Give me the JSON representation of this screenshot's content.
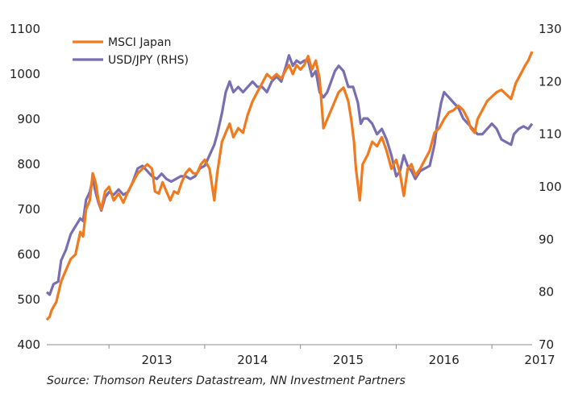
{
  "chart_data": {
    "type": "line",
    "title": "",
    "source": "Source: Thomson Reuters Datastream, NN Investment Partners",
    "x_axis": {
      "tick_labels": [
        "2013",
        "2014",
        "2015",
        "2016",
        "2017"
      ],
      "xlim": [
        2012.35,
        2017.42
      ]
    },
    "y_left": {
      "ylim": [
        400,
        1100
      ],
      "ticks": [
        "400",
        "500",
        "600",
        "700",
        "800",
        "900",
        "1000",
        "1100"
      ]
    },
    "y_right": {
      "ylim": [
        70,
        130
      ],
      "ticks": [
        "70",
        "80",
        "90",
        "100",
        "110",
        "120",
        "130"
      ]
    },
    "grid": false,
    "legend": {
      "position": "top-left"
    },
    "series": [
      {
        "name": "MSCI Japan",
        "axis": "left",
        "color": "#f07a1e",
        "points": [
          [
            2012.35,
            455
          ],
          [
            2012.38,
            462
          ],
          [
            2012.4,
            476
          ],
          [
            2012.45,
            495
          ],
          [
            2012.5,
            540
          ],
          [
            2012.55,
            565
          ],
          [
            2012.6,
            590
          ],
          [
            2012.65,
            600
          ],
          [
            2012.7,
            650
          ],
          [
            2012.73,
            640
          ],
          [
            2012.76,
            700
          ],
          [
            2012.8,
            720
          ],
          [
            2012.83,
            780
          ],
          [
            2012.86,
            760
          ],
          [
            2012.89,
            720
          ],
          [
            2012.92,
            700
          ],
          [
            2012.96,
            740
          ],
          [
            2013.0,
            750
          ],
          [
            2013.05,
            720
          ],
          [
            2013.1,
            735
          ],
          [
            2013.15,
            715
          ],
          [
            2013.2,
            740
          ],
          [
            2013.25,
            760
          ],
          [
            2013.3,
            780
          ],
          [
            2013.35,
            790
          ],
          [
            2013.4,
            800
          ],
          [
            2013.45,
            790
          ],
          [
            2013.48,
            740
          ],
          [
            2013.52,
            735
          ],
          [
            2013.56,
            760
          ],
          [
            2013.6,
            740
          ],
          [
            2013.64,
            720
          ],
          [
            2013.68,
            740
          ],
          [
            2013.72,
            735
          ],
          [
            2013.76,
            760
          ],
          [
            2013.8,
            780
          ],
          [
            2013.84,
            790
          ],
          [
            2013.88,
            780
          ],
          [
            2013.92,
            780
          ],
          [
            2013.96,
            800
          ],
          [
            2014.0,
            810
          ],
          [
            2014.05,
            790
          ],
          [
            2014.1,
            720
          ],
          [
            2014.13,
            780
          ],
          [
            2014.18,
            850
          ],
          [
            2014.22,
            870
          ],
          [
            2014.26,
            890
          ],
          [
            2014.3,
            860
          ],
          [
            2014.35,
            880
          ],
          [
            2014.4,
            870
          ],
          [
            2014.45,
            910
          ],
          [
            2014.5,
            940
          ],
          [
            2014.55,
            960
          ],
          [
            2014.6,
            980
          ],
          [
            2014.65,
            1000
          ],
          [
            2014.7,
            990
          ],
          [
            2014.75,
            1000
          ],
          [
            2014.8,
            990
          ],
          [
            2014.85,
            1010
          ],
          [
            2014.88,
            1020
          ],
          [
            2014.92,
            1000
          ],
          [
            2014.96,
            1020
          ],
          [
            2015.0,
            1010
          ],
          [
            2015.04,
            1020
          ],
          [
            2015.08,
            1040
          ],
          [
            2015.12,
            1010
          ],
          [
            2015.16,
            1030
          ],
          [
            2015.2,
            990
          ],
          [
            2015.24,
            880
          ],
          [
            2015.28,
            900
          ],
          [
            2015.32,
            920
          ],
          [
            2015.36,
            940
          ],
          [
            2015.4,
            960
          ],
          [
            2015.45,
            970
          ],
          [
            2015.5,
            940
          ],
          [
            2015.53,
            900
          ],
          [
            2015.56,
            850
          ],
          [
            2015.58,
            790
          ],
          [
            2015.62,
            720
          ],
          [
            2015.65,
            800
          ],
          [
            2015.7,
            820
          ],
          [
            2015.75,
            850
          ],
          [
            2015.8,
            840
          ],
          [
            2015.85,
            860
          ],
          [
            2015.9,
            830
          ],
          [
            2015.95,
            790
          ],
          [
            2016.0,
            810
          ],
          [
            2016.04,
            780
          ],
          [
            2016.08,
            730
          ],
          [
            2016.12,
            790
          ],
          [
            2016.16,
            800
          ],
          [
            2016.2,
            775
          ],
          [
            2016.25,
            790
          ],
          [
            2016.3,
            810
          ],
          [
            2016.35,
            830
          ],
          [
            2016.4,
            870
          ],
          [
            2016.45,
            880
          ],
          [
            2016.5,
            900
          ],
          [
            2016.55,
            915
          ],
          [
            2016.6,
            920
          ],
          [
            2016.65,
            930
          ],
          [
            2016.7,
            920
          ],
          [
            2016.75,
            900
          ],
          [
            2016.78,
            880
          ],
          [
            2016.82,
            870
          ],
          [
            2016.85,
            900
          ],
          [
            2016.9,
            920
          ],
          [
            2016.95,
            940
          ],
          [
            2017.0,
            950
          ],
          [
            2017.05,
            960
          ],
          [
            2017.1,
            965
          ],
          [
            2017.15,
            955
          ],
          [
            2017.2,
            945
          ],
          [
            2017.25,
            980
          ],
          [
            2017.3,
            1000
          ],
          [
            2017.35,
            1020
          ],
          [
            2017.38,
            1030
          ],
          [
            2017.42,
            1050
          ]
        ]
      },
      {
        "name": "USD/JPY (RHS)",
        "axis": "right",
        "color": "#7a6eb2",
        "points": [
          [
            2012.35,
            80
          ],
          [
            2012.38,
            79.5
          ],
          [
            2012.42,
            81.5
          ],
          [
            2012.47,
            82
          ],
          [
            2012.5,
            86
          ],
          [
            2012.55,
            88
          ],
          [
            2012.6,
            91
          ],
          [
            2012.65,
            92.5
          ],
          [
            2012.7,
            94
          ],
          [
            2012.73,
            93.5
          ],
          [
            2012.76,
            97.5
          ],
          [
            2012.8,
            99
          ],
          [
            2012.83,
            101.5
          ],
          [
            2012.86,
            99
          ],
          [
            2012.89,
            97
          ],
          [
            2012.92,
            95.5
          ],
          [
            2012.96,
            98
          ],
          [
            2013.0,
            99
          ],
          [
            2013.05,
            98.5
          ],
          [
            2013.1,
            99.5
          ],
          [
            2013.15,
            98.5
          ],
          [
            2013.2,
            99
          ],
          [
            2013.25,
            101
          ],
          [
            2013.3,
            103.5
          ],
          [
            2013.35,
            104
          ],
          [
            2013.4,
            103
          ],
          [
            2013.45,
            102
          ],
          [
            2013.5,
            101.5
          ],
          [
            2013.55,
            102.5
          ],
          [
            2013.6,
            101.5
          ],
          [
            2013.65,
            101
          ],
          [
            2013.7,
            101.5
          ],
          [
            2013.75,
            102
          ],
          [
            2013.8,
            102
          ],
          [
            2013.85,
            101.5
          ],
          [
            2013.9,
            102
          ],
          [
            2013.95,
            103.5
          ],
          [
            2014.0,
            104
          ],
          [
            2014.05,
            106
          ],
          [
            2014.1,
            108
          ],
          [
            2014.13,
            110
          ],
          [
            2014.18,
            114
          ],
          [
            2014.22,
            118
          ],
          [
            2014.26,
            120
          ],
          [
            2014.3,
            118
          ],
          [
            2014.35,
            119
          ],
          [
            2014.4,
            118
          ],
          [
            2014.45,
            119
          ],
          [
            2014.5,
            120
          ],
          [
            2014.55,
            119
          ],
          [
            2014.6,
            119
          ],
          [
            2014.65,
            118
          ],
          [
            2014.7,
            120
          ],
          [
            2014.75,
            121
          ],
          [
            2014.8,
            120
          ],
          [
            2014.85,
            123
          ],
          [
            2014.88,
            125
          ],
          [
            2014.92,
            123
          ],
          [
            2014.96,
            124
          ],
          [
            2015.0,
            123.5
          ],
          [
            2015.04,
            124
          ],
          [
            2015.08,
            124
          ],
          [
            2015.12,
            121
          ],
          [
            2015.16,
            122
          ],
          [
            2015.2,
            118
          ],
          [
            2015.24,
            117
          ],
          [
            2015.28,
            118
          ],
          [
            2015.32,
            120
          ],
          [
            2015.36,
            122
          ],
          [
            2015.4,
            123
          ],
          [
            2015.45,
            122
          ],
          [
            2015.5,
            119
          ],
          [
            2015.55,
            119
          ],
          [
            2015.6,
            116
          ],
          [
            2015.63,
            112
          ],
          [
            2015.66,
            113
          ],
          [
            2015.7,
            113
          ],
          [
            2015.75,
            112
          ],
          [
            2015.8,
            110
          ],
          [
            2015.85,
            111
          ],
          [
            2015.9,
            109
          ],
          [
            2015.95,
            106
          ],
          [
            2016.0,
            102
          ],
          [
            2016.04,
            103
          ],
          [
            2016.08,
            106
          ],
          [
            2016.12,
            104
          ],
          [
            2016.16,
            103
          ],
          [
            2016.2,
            101.5
          ],
          [
            2016.25,
            103
          ],
          [
            2016.3,
            103.5
          ],
          [
            2016.35,
            104
          ],
          [
            2016.4,
            108
          ],
          [
            2016.43,
            112
          ],
          [
            2016.47,
            116
          ],
          [
            2016.5,
            118
          ],
          [
            2016.55,
            117
          ],
          [
            2016.6,
            116
          ],
          [
            2016.65,
            115
          ],
          [
            2016.7,
            113
          ],
          [
            2016.75,
            112
          ],
          [
            2016.8,
            111
          ],
          [
            2016.85,
            110
          ],
          [
            2016.9,
            110
          ],
          [
            2016.95,
            111
          ],
          [
            2017.0,
            112
          ],
          [
            2017.05,
            111
          ],
          [
            2017.1,
            109
          ],
          [
            2017.15,
            108.5
          ],
          [
            2017.2,
            108
          ],
          [
            2017.23,
            110
          ],
          [
            2017.28,
            111
          ],
          [
            2017.33,
            111.5
          ],
          [
            2017.38,
            111
          ],
          [
            2017.42,
            112
          ]
        ]
      }
    ]
  }
}
